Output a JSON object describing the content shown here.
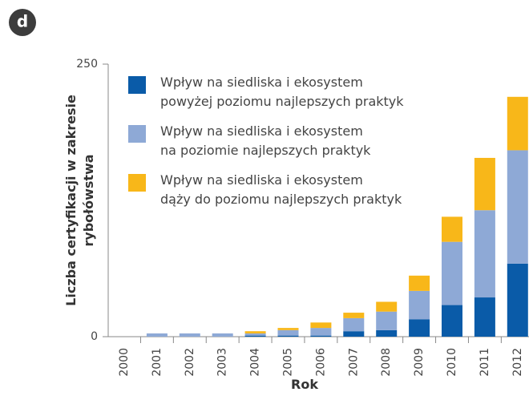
{
  "panel_label": "d",
  "chart_data": {
    "type": "stacked_bar",
    "y_label": "Liczba certyfikacji w zakresie\nrybołówstwa",
    "x_label": "Rok",
    "categories": [
      "2000",
      "2001",
      "2002",
      "2003",
      "2004",
      "2005",
      "2006",
      "2007",
      "2008",
      "2009",
      "2010",
      "2011",
      "2012"
    ],
    "series": [
      {
        "name": "Wpływ na siedliska i ekosystem\npowyżej poziomu najlepszych praktyk",
        "color": "#0a5ba8",
        "values": [
          0,
          0,
          0,
          0,
          1,
          1,
          1,
          5,
          6,
          16,
          29,
          36,
          67
        ]
      },
      {
        "name": "Wpływ na siedliska i ekosystem\nna poziomie najlepszych praktyk",
        "color": "#8ea9d6",
        "values": [
          0,
          3,
          3,
          3,
          2,
          5,
          7,
          12,
          17,
          26,
          58,
          80,
          104
        ]
      },
      {
        "name": "Wpływ na siedliska i ekosystem\ndąży do poziomu najlepszych praktyk",
        "color": "#f8b719",
        "values": [
          0,
          0,
          0,
          0,
          2,
          2,
          5,
          5,
          9,
          14,
          23,
          48,
          49
        ]
      }
    ],
    "ylim": [
      0,
      250
    ],
    "yticks": [
      0,
      250
    ],
    "legend": "upper left"
  }
}
